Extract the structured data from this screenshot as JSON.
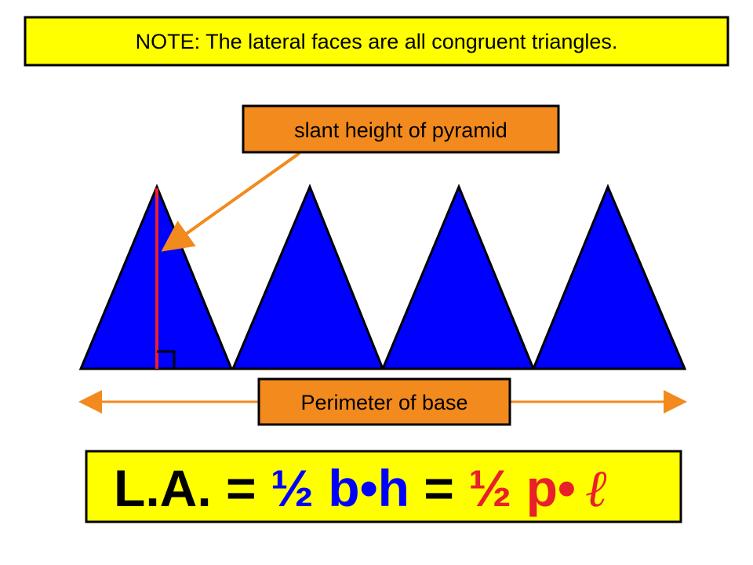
{
  "note": "NOTE:  The lateral faces are all congruent triangles.",
  "slant_label": "slant height of pyramid",
  "perimeter_label": "Perimeter of base",
  "formula": {
    "lhs": "L.A. = ",
    "area": "½ b•h",
    "equals": " = ",
    "half_p": "½ p•",
    "slant": "ℓ"
  }
}
